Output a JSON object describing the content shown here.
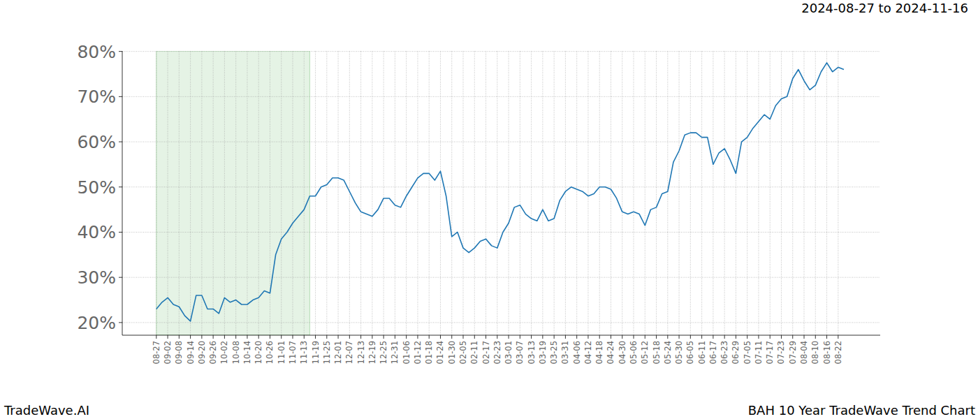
{
  "chart_data": {
    "type": "line",
    "title": "BAH 10 Year TradeWave Trend Chart",
    "subtitle": "2024-08-27 to 2024-11-16",
    "source": "TradeWave.AI",
    "categories": [
      "08-27",
      null,
      "09-02",
      null,
      "09-08",
      null,
      "09-14",
      null,
      "09-20",
      null,
      "09-26",
      null,
      "10-02",
      null,
      "10-08",
      null,
      "10-14",
      null,
      "10-20",
      null,
      "10-26",
      null,
      "11-01",
      null,
      "11-07",
      null,
      "11-13",
      null,
      "11-19",
      null,
      "11-25",
      null,
      "12-01",
      null,
      "12-07",
      null,
      "12-13",
      null,
      "12-19",
      null,
      "12-25",
      null,
      "12-31",
      null,
      "01-06",
      null,
      "01-12",
      null,
      "01-18",
      null,
      "01-24",
      null,
      "01-30",
      null,
      "02-05",
      null,
      "02-11",
      null,
      "02-17",
      null,
      "02-23",
      null,
      "03-01",
      null,
      "03-07",
      null,
      "03-13",
      null,
      "03-19",
      null,
      "03-25",
      null,
      "03-31",
      null,
      "04-06",
      null,
      "04-12",
      null,
      "04-18",
      null,
      "04-24",
      null,
      "04-30",
      null,
      "05-06",
      null,
      "05-12",
      null,
      "05-18",
      null,
      "05-24",
      null,
      "05-30",
      null,
      "06-05",
      null,
      "06-11",
      null,
      "06-17",
      null,
      "06-23",
      null,
      "06-29",
      null,
      "07-05",
      null,
      "07-11",
      null,
      "07-17",
      null,
      "07-23",
      null,
      "07-29",
      null,
      "08-04",
      null,
      "08-10",
      null,
      "08-16",
      null,
      "08-22",
      null
    ],
    "values": [
      23,
      24.5,
      25.5,
      24,
      23.5,
      21.5,
      20.3,
      26,
      26,
      23,
      23,
      22,
      25.5,
      24.5,
      25,
      24,
      24,
      25,
      25.5,
      27,
      26.5,
      35,
      38.5,
      40,
      42,
      43.5,
      45,
      48,
      48,
      50,
      50.5,
      52,
      52,
      51.5,
      49,
      46.5,
      44.5,
      44,
      43.5,
      45,
      47.5,
      47.5,
      46,
      45.5,
      48,
      50,
      52,
      53,
      53,
      51.5,
      53.5,
      48,
      39,
      40,
      36.5,
      35.5,
      36.5,
      38,
      38.5,
      37,
      36.5,
      40,
      42,
      45.5,
      46,
      44,
      43,
      42.5,
      45,
      42.5,
      43,
      47,
      49,
      50,
      49.5,
      49,
      48,
      48.5,
      50,
      50,
      49.5,
      47.5,
      44.5,
      44,
      44.5,
      44,
      41.5,
      45,
      45.5,
      48.5,
      49,
      55.5,
      58,
      61.5,
      62,
      62,
      61,
      61,
      55,
      57.5,
      58.5,
      56,
      53,
      60,
      61,
      63,
      64.5,
      66,
      65,
      68,
      69.5,
      70,
      74,
      76,
      73.5,
      71.5,
      72.5,
      75.5,
      77.5,
      75.5,
      76.5,
      76
    ],
    "color": "#1f77b4",
    "highlight": [
      0,
      27
    ],
    "xlim": [
      -6,
      127.4
    ],
    "ylim": [
      17.2,
      80.1
    ],
    "yticks": [
      {
        "value": 20,
        "label": "20%"
      },
      {
        "value": 30,
        "label": "30%"
      },
      {
        "value": 40,
        "label": "40%"
      },
      {
        "value": 50,
        "label": "50%"
      },
      {
        "value": 60,
        "label": "60%"
      },
      {
        "value": 70,
        "label": "70%"
      },
      {
        "value": 80,
        "label": "80%"
      }
    ],
    "grid": true
  }
}
